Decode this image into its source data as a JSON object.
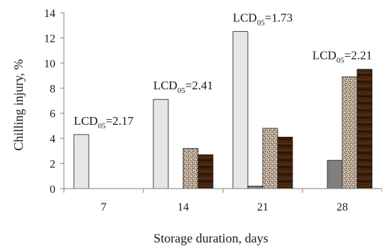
{
  "chart_data": {
    "type": "bar",
    "xlabel": "Storage duration, days",
    "ylabel": "Chilling injury, %",
    "ylim": [
      0,
      14
    ],
    "yticks": [
      0,
      2,
      4,
      6,
      8,
      10,
      12,
      14
    ],
    "categories": [
      "7",
      "14",
      "21",
      "28"
    ],
    "series": [
      {
        "values": [
          4.3,
          7.1,
          12.5,
          0
        ],
        "fill": "#e6e6e6"
      },
      {
        "values": [
          0,
          0,
          0.2,
          2.25
        ],
        "fill": "#7f7f7f"
      },
      {
        "values": [
          0,
          3.2,
          4.8,
          8.9
        ],
        "fill": "speckled"
      },
      {
        "values": [
          0,
          2.7,
          4.1,
          9.5
        ],
        "fill": "dark-wood"
      }
    ],
    "annotations": [
      {
        "category": "7",
        "prefix": "LCD",
        "sub": "05",
        "value": "=2.17"
      },
      {
        "category": "14",
        "prefix": "LCD",
        "sub": "05",
        "value": "=2.41"
      },
      {
        "category": "21",
        "prefix": "LCD",
        "sub": "05",
        "value": "=1.73"
      },
      {
        "category": "28",
        "prefix": "LCD",
        "sub": "05",
        "value": "=2.21"
      }
    ],
    "grid": false,
    "legend": "none"
  }
}
